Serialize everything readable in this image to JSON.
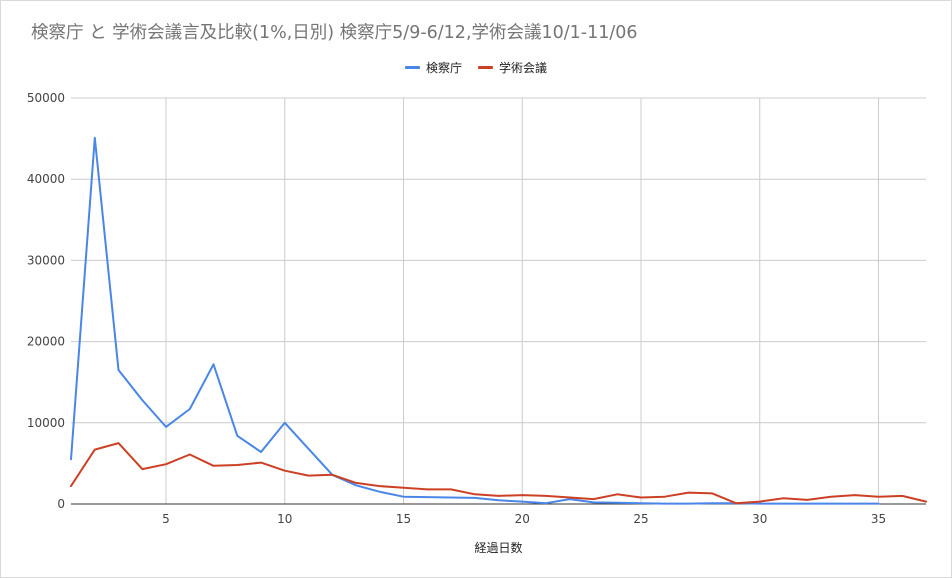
{
  "chart_data": {
    "type": "line",
    "title": "検察庁 と 学術会議言及比較(1%,日別) 検察庁5/9-6/12,学術会議10/1-11/06",
    "xlabel": "経過日数",
    "ylabel": "",
    "xlim": [
      1,
      37
    ],
    "ylim": [
      0,
      50000
    ],
    "x_ticks": [
      5,
      10,
      15,
      20,
      25,
      30,
      35
    ],
    "y_ticks": [
      0,
      10000,
      20000,
      30000,
      40000,
      50000
    ],
    "grid": true,
    "legend_position": "top",
    "series": [
      {
        "name": "検察庁",
        "color": "#4a86e8",
        "x": [
          1,
          2,
          3,
          4,
          5,
          6,
          7,
          8,
          9,
          10,
          11,
          12,
          13,
          14,
          15,
          16,
          17,
          18,
          19,
          20,
          21,
          22,
          23,
          24,
          25,
          26,
          27,
          28,
          29,
          30,
          31,
          32,
          33,
          34,
          35
        ],
        "values": [
          5500,
          45100,
          16500,
          12800,
          9500,
          11700,
          17200,
          8400,
          6400,
          10000,
          6800,
          3600,
          2300,
          1500,
          900,
          850,
          800,
          750,
          450,
          300,
          100,
          600,
          200,
          150,
          100,
          50,
          50,
          100,
          100,
          50,
          50,
          50,
          50,
          50,
          50
        ]
      },
      {
        "name": "学術会議",
        "color": "#cc4125",
        "x": [
          1,
          2,
          3,
          4,
          5,
          6,
          7,
          8,
          9,
          10,
          11,
          12,
          13,
          14,
          15,
          16,
          17,
          18,
          19,
          20,
          21,
          22,
          23,
          24,
          25,
          26,
          27,
          28,
          29,
          30,
          31,
          32,
          33,
          34,
          35,
          36,
          37
        ],
        "values": [
          2200,
          6700,
          7500,
          4300,
          4900,
          6100,
          4700,
          4800,
          5100,
          4100,
          3500,
          3600,
          2600,
          2200,
          2000,
          1800,
          1800,
          1200,
          1000,
          1100,
          1000,
          800,
          600,
          1200,
          800,
          900,
          1400,
          1300,
          100,
          300,
          700,
          500,
          900,
          1100,
          900,
          1000,
          300
        ]
      }
    ]
  }
}
